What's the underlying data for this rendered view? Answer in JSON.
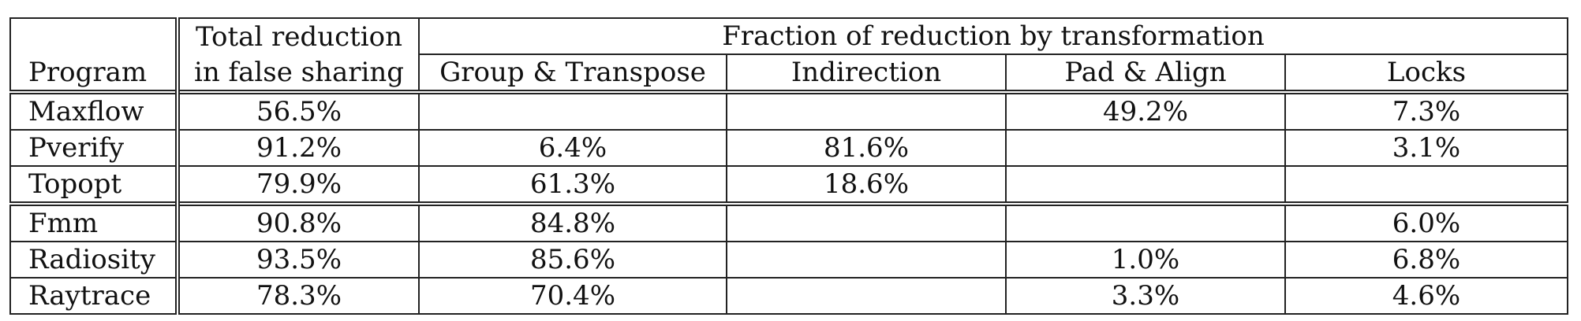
{
  "table": {
    "header": {
      "program": "Program",
      "total_line1": "Total reduction",
      "total_line2": "in false sharing",
      "fraction_group": "Fraction of reduction by transformation",
      "transformations": [
        "Group & Transpose",
        "Indirection",
        "Pad & Align",
        "Locks"
      ]
    },
    "rows": [
      {
        "program": "Maxflow",
        "total": "56.5%",
        "values": [
          "",
          "",
          "49.2%",
          "7.3%"
        ]
      },
      {
        "program": "Pverify",
        "total": "91.2%",
        "values": [
          "6.4%",
          "81.6%",
          "",
          "3.1%"
        ]
      },
      {
        "program": "Topopt",
        "total": "79.9%",
        "values": [
          "61.3%",
          "18.6%",
          "",
          ""
        ]
      },
      {
        "program": "Fmm",
        "total": "90.8%",
        "values": [
          "84.8%",
          "",
          "",
          "6.0%"
        ]
      },
      {
        "program": "Radiosity",
        "total": "93.5%",
        "values": [
          "85.6%",
          "",
          "1.0%",
          "6.8%"
        ]
      },
      {
        "program": "Raytrace",
        "total": "78.3%",
        "values": [
          "70.4%",
          "",
          "3.3%",
          "4.6%"
        ]
      }
    ]
  }
}
